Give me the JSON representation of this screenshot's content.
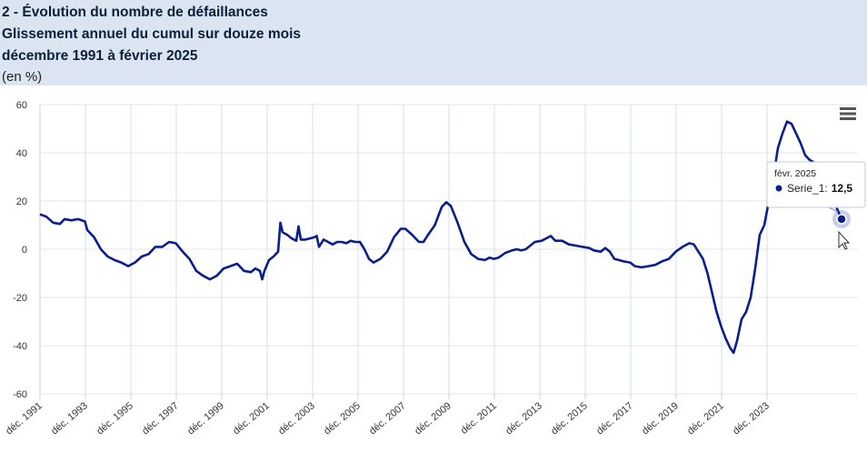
{
  "header": {
    "title_line1": "2 - Évolution du nombre de défaillances",
    "title_line2": "Glissement annuel du cumul sur douze mois",
    "title_line3": "décembre 1991 à février 2025",
    "unit": "(en %)"
  },
  "menu": {
    "icon": "hamburger-menu-icon"
  },
  "tooltip": {
    "date": "févr. 2025",
    "series": "Serie_1",
    "value": "12,5",
    "separator": ":"
  },
  "chart_data": {
    "type": "line",
    "title": "2 - Évolution du nombre de défaillances",
    "xlabel": "",
    "ylabel": "(en %)",
    "ylim": [
      -60,
      60
    ],
    "yticks": [
      60,
      40,
      20,
      0,
      -20,
      -40,
      -60
    ],
    "xtick_labels": [
      "déc. 1991",
      "déc. 1993",
      "déc. 1995",
      "déc. 1997",
      "déc. 1999",
      "déc. 2001",
      "déc. 2003",
      "déc. 2005",
      "déc. 2007",
      "déc. 2009",
      "déc. 2011",
      "déc. 2013",
      "déc. 2015",
      "déc. 2017",
      "déc. 2019",
      "déc. 2021",
      "déc. 2023"
    ],
    "grid": true,
    "line_color": "#0a1e8c",
    "series": [
      {
        "name": "Serie_1",
        "points": [
          [
            1991.92,
            14.5
          ],
          [
            1992.2,
            13.5
          ],
          [
            1992.5,
            11
          ],
          [
            1992.8,
            10.5
          ],
          [
            1993.0,
            12.5
          ],
          [
            1993.3,
            12
          ],
          [
            1993.6,
            12.5
          ],
          [
            1993.9,
            11.5
          ],
          [
            1994.0,
            8
          ],
          [
            1994.3,
            5
          ],
          [
            1994.6,
            0
          ],
          [
            1994.9,
            -3
          ],
          [
            1995.2,
            -4.5
          ],
          [
            1995.5,
            -5.5
          ],
          [
            1995.8,
            -7
          ],
          [
            1996.1,
            -5.5
          ],
          [
            1996.4,
            -3
          ],
          [
            1996.7,
            -2
          ],
          [
            1997.0,
            1
          ],
          [
            1997.3,
            1
          ],
          [
            1997.6,
            3
          ],
          [
            1997.9,
            2.5
          ],
          [
            1998.2,
            -1
          ],
          [
            1998.5,
            -4
          ],
          [
            1998.8,
            -9
          ],
          [
            1999.1,
            -11
          ],
          [
            1999.4,
            -12.5
          ],
          [
            1999.7,
            -11
          ],
          [
            2000.0,
            -8
          ],
          [
            2000.3,
            -7
          ],
          [
            2000.6,
            -6
          ],
          [
            2000.9,
            -9
          ],
          [
            2001.2,
            -9.5
          ],
          [
            2001.4,
            -8
          ],
          [
            2001.6,
            -9
          ],
          [
            2001.7,
            -12.5
          ],
          [
            2001.8,
            -9
          ],
          [
            2002.0,
            -4.5
          ],
          [
            2002.2,
            -3
          ],
          [
            2002.4,
            -1
          ],
          [
            2002.5,
            11
          ],
          [
            2002.6,
            7
          ],
          [
            2002.8,
            6
          ],
          [
            2003.0,
            4.5
          ],
          [
            2003.2,
            3.5
          ],
          [
            2003.3,
            9.5
          ],
          [
            2003.4,
            4
          ],
          [
            2003.6,
            4
          ],
          [
            2003.8,
            4.5
          ],
          [
            2004.0,
            5
          ],
          [
            2004.1,
            5.5
          ],
          [
            2004.2,
            1
          ],
          [
            2004.4,
            4
          ],
          [
            2004.6,
            3
          ],
          [
            2004.8,
            2
          ],
          [
            2005.0,
            3
          ],
          [
            2005.2,
            3
          ],
          [
            2005.4,
            2.5
          ],
          [
            2005.6,
            3.5
          ],
          [
            2005.8,
            3
          ],
          [
            2006.0,
            3
          ],
          [
            2006.2,
            0
          ],
          [
            2006.4,
            -4
          ],
          [
            2006.6,
            -5.5
          ],
          [
            2006.9,
            -4
          ],
          [
            2007.2,
            -1
          ],
          [
            2007.5,
            5
          ],
          [
            2007.8,
            8.5
          ],
          [
            2008.0,
            8.5
          ],
          [
            2008.3,
            6
          ],
          [
            2008.6,
            3
          ],
          [
            2008.8,
            3
          ],
          [
            2009.0,
            6
          ],
          [
            2009.3,
            10
          ],
          [
            2009.6,
            17.5
          ],
          [
            2009.8,
            19.5
          ],
          [
            2010.0,
            18
          ],
          [
            2010.3,
            11
          ],
          [
            2010.6,
            3
          ],
          [
            2010.9,
            -2
          ],
          [
            2011.2,
            -4
          ],
          [
            2011.5,
            -4.5
          ],
          [
            2011.7,
            -3.5
          ],
          [
            2011.9,
            -4
          ],
          [
            2012.1,
            -3.5
          ],
          [
            2012.4,
            -1.5
          ],
          [
            2012.7,
            -0.5
          ],
          [
            2012.9,
            0
          ],
          [
            2013.1,
            -0.5
          ],
          [
            2013.3,
            0
          ],
          [
            2013.5,
            1.5
          ],
          [
            2013.7,
            3
          ],
          [
            2014.0,
            3.5
          ],
          [
            2014.2,
            4.5
          ],
          [
            2014.4,
            5.5
          ],
          [
            2014.6,
            3.5
          ],
          [
            2014.9,
            3.5
          ],
          [
            2015.2,
            2
          ],
          [
            2015.5,
            1.5
          ],
          [
            2015.8,
            1
          ],
          [
            2016.1,
            0.5
          ],
          [
            2016.3,
            -0.5
          ],
          [
            2016.6,
            -1
          ],
          [
            2016.8,
            0.5
          ],
          [
            2017.0,
            -1
          ],
          [
            2017.2,
            -4
          ],
          [
            2017.4,
            -4.5
          ],
          [
            2017.6,
            -5
          ],
          [
            2017.9,
            -5.5
          ],
          [
            2018.1,
            -7
          ],
          [
            2018.4,
            -7.5
          ],
          [
            2018.7,
            -7
          ],
          [
            2019.0,
            -6.5
          ],
          [
            2019.3,
            -5
          ],
          [
            2019.6,
            -4
          ],
          [
            2019.9,
            -1
          ],
          [
            2020.2,
            1
          ],
          [
            2020.5,
            2.5
          ],
          [
            2020.7,
            2
          ],
          [
            2020.9,
            -1
          ],
          [
            2021.1,
            -4
          ],
          [
            2021.3,
            -10
          ],
          [
            2021.5,
            -18
          ],
          [
            2021.7,
            -26
          ],
          [
            2021.9,
            -32
          ],
          [
            2022.1,
            -37
          ],
          [
            2022.3,
            -41
          ],
          [
            2022.45,
            -43
          ],
          [
            2022.6,
            -38
          ],
          [
            2022.8,
            -29
          ],
          [
            2023.0,
            -26
          ],
          [
            2023.2,
            -20
          ],
          [
            2023.4,
            -8
          ],
          [
            2023.6,
            6
          ],
          [
            2023.8,
            10
          ],
          [
            2024.0,
            20
          ],
          [
            2024.2,
            30
          ],
          [
            2024.4,
            42
          ],
          [
            2024.6,
            48
          ],
          [
            2024.8,
            53
          ],
          [
            2025.0,
            52
          ],
          [
            2025.2,
            48
          ],
          [
            2025.4,
            44
          ],
          [
            2025.6,
            39
          ],
          [
            2025.8,
            37
          ],
          [
            2026.0,
            36
          ],
          [
            2026.3,
            31
          ],
          [
            2026.6,
            25
          ],
          [
            2026.9,
            19
          ],
          [
            2027.2,
            12.5
          ]
        ],
        "highlight": [
          2027.2,
          12.5
        ]
      }
    ]
  }
}
